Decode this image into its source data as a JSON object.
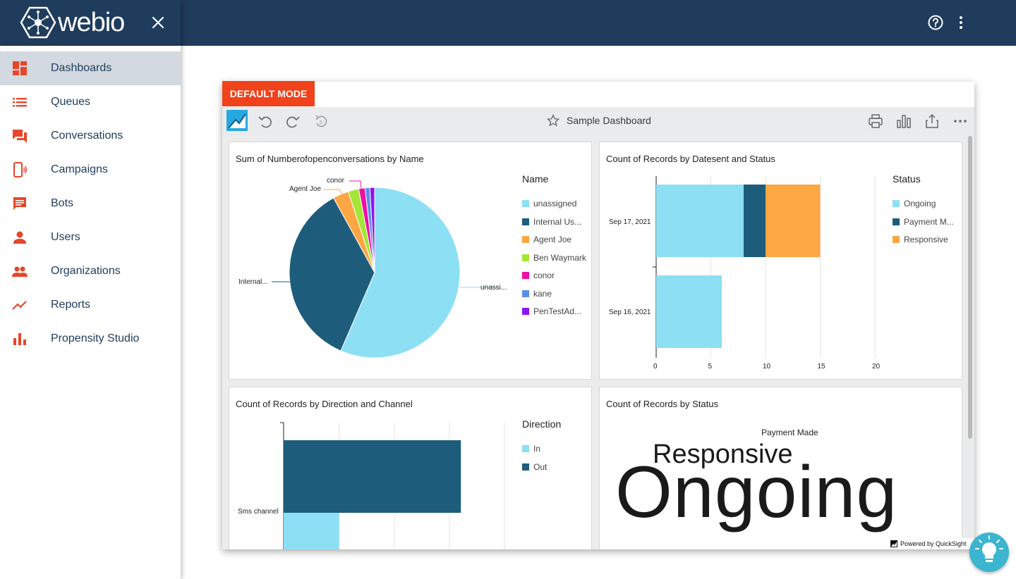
{
  "app": {
    "name": "webio"
  },
  "sidebar": {
    "items": [
      {
        "label": "Dashboards",
        "icon": "dashboard-icon",
        "active": true
      },
      {
        "label": "Queues",
        "icon": "list-icon"
      },
      {
        "label": "Conversations",
        "icon": "chat-icon"
      },
      {
        "label": "Campaigns",
        "icon": "phone-icon"
      },
      {
        "label": "Bots",
        "icon": "message-icon"
      },
      {
        "label": "Users",
        "icon": "person-icon"
      },
      {
        "label": "Organizations",
        "icon": "group-icon"
      },
      {
        "label": "Reports",
        "icon": "trending-icon"
      },
      {
        "label": "Propensity Studio",
        "icon": "bar-chart-icon"
      }
    ]
  },
  "dashboard": {
    "mode_label": "DEFAULT MODE",
    "title": "Sample Dashboard",
    "powered_by": "Powered by QuickSight"
  },
  "colors": {
    "nav_bg": "#1f3c5c",
    "accent": "#f0421b",
    "light_blue": "#8ddff4",
    "dark_blue": "#1e5c7b",
    "orange": "#fca644",
    "lime": "#a3e635",
    "magenta": "#ec0fa8",
    "periwinkle": "#5b8ee8",
    "purple": "#8b16f0"
  },
  "chart_data": [
    {
      "type": "pie",
      "title": "Sum of Numberofopenconversations by Name",
      "legend_title": "Name",
      "slice_labels": [
        "unassi...",
        "Internal...",
        "Agent Joe",
        "conor"
      ],
      "series": [
        {
          "name": "unassigned",
          "value": 56.5,
          "color": "#8ddff4"
        },
        {
          "name": "Internal Us...",
          "value": 35.5,
          "color": "#1e5c7b"
        },
        {
          "name": "Agent Joe",
          "value": 3.0,
          "color": "#fca644"
        },
        {
          "name": "Ben Waymark",
          "value": 2.0,
          "color": "#a3e635"
        },
        {
          "name": "conor",
          "value": 1.2,
          "color": "#ec0fa8"
        },
        {
          "name": "kane",
          "value": 0.9,
          "color": "#5b8ee8"
        },
        {
          "name": "PenTestAd...",
          "value": 0.9,
          "color": "#8b16f0"
        }
      ]
    },
    {
      "type": "bar",
      "orientation": "horizontal",
      "stacked": true,
      "title": "Count of Records by Datesent and Status",
      "legend_title": "Status",
      "categories": [
        "Sep 17, 2021",
        "Sep 16, 2021"
      ],
      "series": [
        {
          "name": "Ongoing",
          "values": [
            8,
            6
          ],
          "color": "#8ddff4"
        },
        {
          "name": "Payment M...",
          "values": [
            2,
            0
          ],
          "color": "#1e5c7b"
        },
        {
          "name": "Responsive",
          "values": [
            5,
            0
          ],
          "color": "#fca644"
        }
      ],
      "xlim": [
        0,
        20
      ],
      "xticks": [
        "0",
        "5",
        "10",
        "15",
        "20"
      ]
    },
    {
      "type": "bar",
      "orientation": "horizontal",
      "title": "Count of Records by Direction and Channel",
      "legend_title": "Direction",
      "categories": [
        "Sms channel"
      ],
      "series": [
        {
          "name": "In",
          "values": [
            2
          ],
          "color": "#8ddff4"
        },
        {
          "name": "Out",
          "values": [
            8
          ],
          "color": "#1e5c7b"
        }
      ]
    },
    {
      "type": "wordcloud",
      "title": "Count of Records by Status",
      "words": [
        "Payment Made",
        "Responsive",
        "Ongoing"
      ]
    }
  ]
}
